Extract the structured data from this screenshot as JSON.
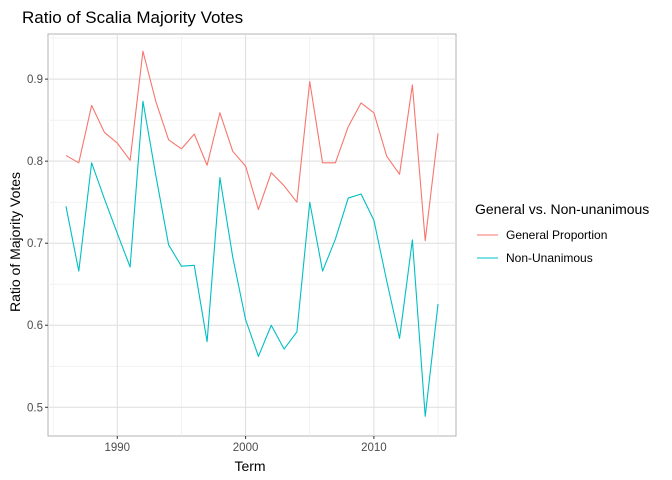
{
  "chart_data": {
    "type": "line",
    "title": "Ratio of Scalia Majority Votes",
    "xlabel": "Term",
    "ylabel": "Ratio of Majority Votes",
    "xlim": [
      1984.6,
      2016.4
    ],
    "ylim": [
      0.465,
      0.955
    ],
    "x_ticks": [
      1990,
      2000,
      2010
    ],
    "x_tick_labels": [
      "1990",
      "2000",
      "2010"
    ],
    "y_ticks": [
      0.5,
      0.6,
      0.7,
      0.8,
      0.9
    ],
    "y_tick_labels": [
      "0.5",
      "0.6",
      "0.7",
      "0.8",
      "0.9"
    ],
    "grid": true,
    "legend": {
      "title": "General vs. Non-unanimous",
      "position": "right"
    },
    "x": [
      1986,
      1987,
      1988,
      1989,
      1990,
      1991,
      1992,
      1993,
      1994,
      1995,
      1996,
      1997,
      1998,
      1999,
      2000,
      2001,
      2002,
      2003,
      2004,
      2005,
      2006,
      2007,
      2008,
      2009,
      2010,
      2011,
      2012,
      2013,
      2014,
      2015
    ],
    "series": [
      {
        "name": "General Proportion",
        "color": "#F8766D",
        "values": [
          0.807,
          0.798,
          0.868,
          0.835,
          0.822,
          0.801,
          0.934,
          0.873,
          0.826,
          0.815,
          0.833,
          0.795,
          0.859,
          0.812,
          0.794,
          0.741,
          0.786,
          0.77,
          0.75,
          0.897,
          0.798,
          0.798,
          0.842,
          0.871,
          0.859,
          0.806,
          0.784,
          0.893,
          0.703,
          0.834
        ]
      },
      {
        "name": "Non-Unanimous",
        "color": "#00BFC4",
        "values": [
          0.745,
          0.666,
          0.798,
          0.754,
          0.712,
          0.671,
          0.873,
          0.783,
          0.698,
          0.672,
          0.673,
          0.58,
          0.78,
          0.683,
          0.607,
          0.562,
          0.6,
          0.571,
          0.592,
          0.75,
          0.666,
          0.705,
          0.755,
          0.76,
          0.728,
          0.654,
          0.584,
          0.704,
          0.489,
          0.626
        ]
      }
    ]
  }
}
